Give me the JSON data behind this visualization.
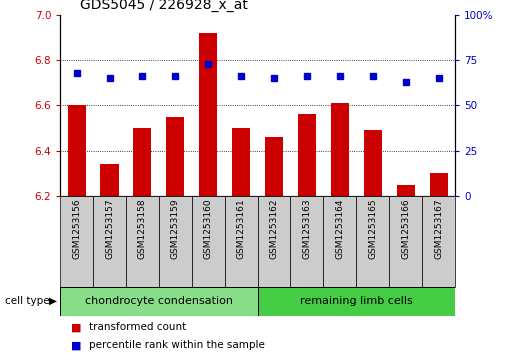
{
  "title": "GDS5045 / 226928_x_at",
  "samples": [
    "GSM1253156",
    "GSM1253157",
    "GSM1253158",
    "GSM1253159",
    "GSM1253160",
    "GSM1253161",
    "GSM1253162",
    "GSM1253163",
    "GSM1253164",
    "GSM1253165",
    "GSM1253166",
    "GSM1253167"
  ],
  "transformed_count": [
    6.6,
    6.34,
    6.5,
    6.55,
    6.92,
    6.5,
    6.46,
    6.56,
    6.61,
    6.49,
    6.25,
    6.3
  ],
  "percentile_rank": [
    68,
    65,
    66,
    66,
    73,
    66,
    65,
    66,
    66,
    66,
    63,
    65
  ],
  "ylim_left": [
    6.2,
    7.0
  ],
  "ylim_right": [
    0,
    100
  ],
  "yticks_left": [
    6.2,
    6.4,
    6.6,
    6.8,
    7.0
  ],
  "yticks_right": [
    0,
    25,
    50,
    75,
    100
  ],
  "bar_color": "#cc0000",
  "dot_color": "#0000cc",
  "group1_label": "chondrocyte condensation",
  "group2_label": "remaining limb cells",
  "group1_count": 6,
  "group2_count": 6,
  "cell_type_label": "cell type",
  "legend_bar_label": "transformed count",
  "legend_dot_label": "percentile rank within the sample",
  "bg_color": "#cccccc",
  "group1_bg": "#88dd88",
  "group2_bg": "#44cc44",
  "tick_fontsize": 7.5,
  "sample_fontsize": 6.5,
  "group_fontsize": 8,
  "legend_fontsize": 7.5,
  "title_fontsize": 10
}
